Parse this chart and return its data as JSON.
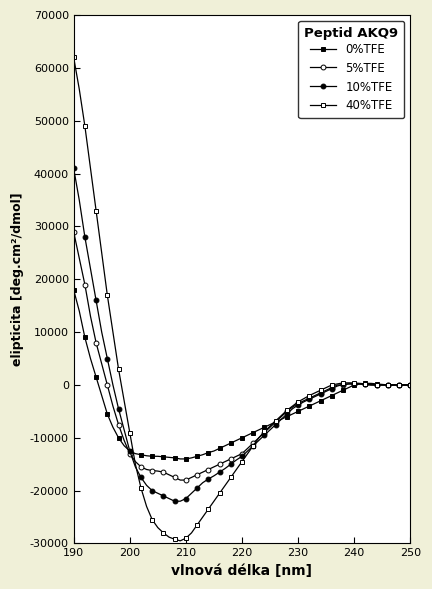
{
  "title": "Peptid AKQ9",
  "xlabel": "vlnová délka [nm]",
  "ylabel": "elipticita [deg.cm²/dmol]",
  "xlim": [
    190,
    250
  ],
  "ylim": [
    -30000,
    70000
  ],
  "yticks": [
    -30000,
    -20000,
    -10000,
    0,
    10000,
    20000,
    30000,
    40000,
    50000,
    60000,
    70000
  ],
  "xticks": [
    190,
    200,
    210,
    220,
    230,
    240,
    250
  ],
  "background_color": "#f0f0d8",
  "plot_bg_color": "#ffffff",
  "series": [
    {
      "label": "0%TFE",
      "marker": "s",
      "mfc": "black",
      "mec": "black",
      "x": [
        190,
        191,
        192,
        193,
        194,
        195,
        196,
        197,
        198,
        199,
        200,
        201,
        202,
        203,
        204,
        205,
        206,
        207,
        208,
        209,
        210,
        211,
        212,
        213,
        214,
        215,
        216,
        217,
        218,
        219,
        220,
        221,
        222,
        223,
        224,
        225,
        226,
        227,
        228,
        229,
        230,
        231,
        232,
        233,
        234,
        235,
        236,
        237,
        238,
        239,
        240,
        241,
        242,
        243,
        244,
        245,
        246,
        247,
        248,
        249,
        250
      ],
      "y": [
        18000,
        14000,
        9000,
        5000,
        1500,
        -2000,
        -5500,
        -8000,
        -10000,
        -11500,
        -12500,
        -13000,
        -13200,
        -13400,
        -13500,
        -13500,
        -13600,
        -13700,
        -13800,
        -14000,
        -14000,
        -13800,
        -13500,
        -13200,
        -12800,
        -12500,
        -12000,
        -11500,
        -11000,
        -10500,
        -10000,
        -9500,
        -9000,
        -8500,
        -8000,
        -7500,
        -7000,
        -6500,
        -6000,
        -5500,
        -5000,
        -4500,
        -4000,
        -3500,
        -3000,
        -2500,
        -2000,
        -1500,
        -1000,
        -500,
        0,
        200,
        300,
        300,
        200,
        100,
        0,
        0,
        0,
        0,
        0
      ]
    },
    {
      "label": "5%TFE",
      "marker": "o",
      "mfc": "white",
      "mec": "black",
      "x": [
        190,
        191,
        192,
        193,
        194,
        195,
        196,
        197,
        198,
        199,
        200,
        201,
        202,
        203,
        204,
        205,
        206,
        207,
        208,
        209,
        210,
        211,
        212,
        213,
        214,
        215,
        216,
        217,
        218,
        219,
        220,
        221,
        222,
        223,
        224,
        225,
        226,
        227,
        228,
        229,
        230,
        231,
        232,
        233,
        234,
        235,
        236,
        237,
        238,
        239,
        240,
        241,
        242,
        243,
        244,
        245,
        246,
        247,
        248,
        249,
        250
      ],
      "y": [
        29000,
        24000,
        19000,
        13000,
        8000,
        4000,
        0,
        -4000,
        -7500,
        -10500,
        -13000,
        -14500,
        -15500,
        -16000,
        -16200,
        -16300,
        -16500,
        -17000,
        -17500,
        -18000,
        -18000,
        -17500,
        -17000,
        -16500,
        -16000,
        -15500,
        -15000,
        -14500,
        -14000,
        -13500,
        -13000,
        -12000,
        -11000,
        -10000,
        -9000,
        -8000,
        -7000,
        -6000,
        -5000,
        -4200,
        -3500,
        -3000,
        -2500,
        -2000,
        -1500,
        -1000,
        -500,
        0,
        0,
        200,
        200,
        200,
        100,
        0,
        0,
        0,
        0,
        0,
        0,
        0,
        0
      ]
    },
    {
      "label": "10%TFE",
      "marker": "o",
      "mfc": "black",
      "mec": "black",
      "x": [
        190,
        191,
        192,
        193,
        194,
        195,
        196,
        197,
        198,
        199,
        200,
        201,
        202,
        203,
        204,
        205,
        206,
        207,
        208,
        209,
        210,
        211,
        212,
        213,
        214,
        215,
        216,
        217,
        218,
        219,
        220,
        221,
        222,
        223,
        224,
        225,
        226,
        227,
        228,
        229,
        230,
        231,
        232,
        233,
        234,
        235,
        236,
        237,
        238,
        239,
        240,
        241,
        242,
        243,
        244,
        245,
        246,
        247,
        248,
        249,
        250
      ],
      "y": [
        41000,
        35000,
        28000,
        22000,
        16000,
        10000,
        5000,
        0,
        -4500,
        -8500,
        -12500,
        -15500,
        -17500,
        -19000,
        -20000,
        -20500,
        -21000,
        -21500,
        -22000,
        -22000,
        -21500,
        -20500,
        -19500,
        -18500,
        -17800,
        -17200,
        -16500,
        -15800,
        -15000,
        -14200,
        -13500,
        -12500,
        -11500,
        -10500,
        -9500,
        -8500,
        -7500,
        -6500,
        -5500,
        -4500,
        -3800,
        -3200,
        -2700,
        -2200,
        -1700,
        -1200,
        -700,
        -200,
        100,
        200,
        200,
        200,
        100,
        0,
        0,
        0,
        0,
        0,
        0,
        0,
        0
      ]
    },
    {
      "label": "40%TFE",
      "marker": "s",
      "mfc": "white",
      "mec": "black",
      "x": [
        190,
        191,
        192,
        193,
        194,
        195,
        196,
        197,
        198,
        199,
        200,
        201,
        202,
        203,
        204,
        205,
        206,
        207,
        208,
        209,
        210,
        211,
        212,
        213,
        214,
        215,
        216,
        217,
        218,
        219,
        220,
        221,
        222,
        223,
        224,
        225,
        226,
        227,
        228,
        229,
        230,
        231,
        232,
        233,
        234,
        235,
        236,
        237,
        238,
        239,
        240,
        241,
        242,
        243,
        244,
        245,
        246,
        247,
        248,
        249,
        250
      ],
      "y": [
        62000,
        56000,
        49000,
        41000,
        33000,
        25000,
        17000,
        10000,
        3000,
        -3000,
        -9000,
        -15000,
        -19500,
        -23000,
        -25500,
        -27000,
        -28000,
        -28800,
        -29200,
        -29500,
        -29000,
        -28000,
        -26500,
        -25000,
        -23500,
        -22000,
        -20500,
        -19000,
        -17500,
        -16000,
        -14500,
        -13000,
        -11500,
        -10000,
        -8800,
        -7800,
        -6800,
        -5800,
        -4800,
        -4000,
        -3200,
        -2600,
        -2000,
        -1500,
        -1000,
        -500,
        0,
        200,
        400,
        400,
        400,
        300,
        200,
        100,
        0,
        0,
        0,
        0,
        0,
        0,
        0
      ]
    }
  ]
}
